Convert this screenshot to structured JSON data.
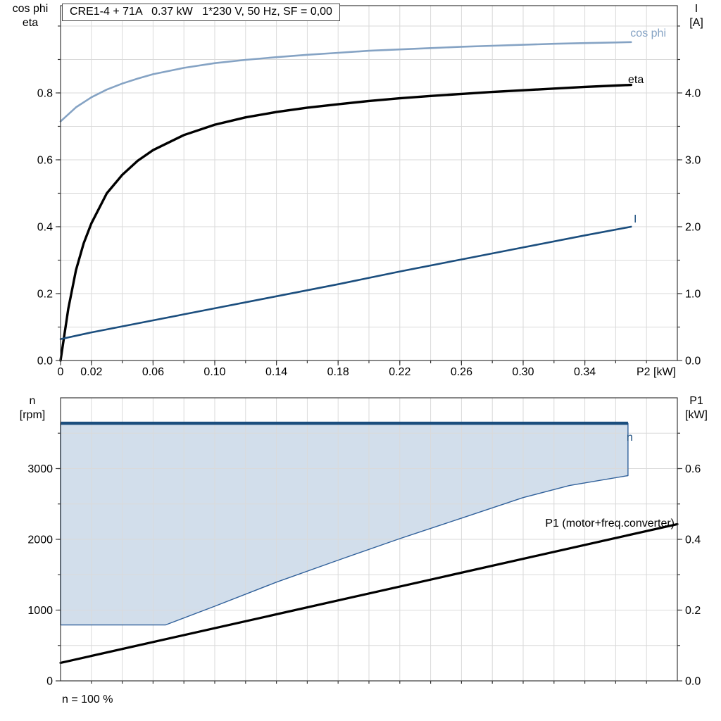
{
  "page": {
    "background": "#ffffff"
  },
  "chart_data": [
    {
      "id": "motor-performance",
      "type": "line",
      "title": "CRE1-4 + 71A   0.37 kW   1*230 V, 50 Hz, SF = 0,00",
      "xlabel": "P2 [kW]",
      "ylabel_left_lines": [
        "cos phi",
        "eta"
      ],
      "ylabel_right_lines": [
        "I",
        "[A]"
      ],
      "xlim": [
        0,
        0.4
      ],
      "ylim_left": [
        0,
        1.061
      ],
      "ylim_right": [
        0,
        5.305
      ],
      "x_grid_step": 0.02,
      "y_grid_step": 0.1,
      "grid": true,
      "legend_position": "on-curve",
      "x_ticks": [
        {
          "v": 0,
          "label": "0"
        },
        {
          "v": 0.02,
          "label": "0.02"
        },
        {
          "v": 0.06,
          "label": "0.06"
        },
        {
          "v": 0.1,
          "label": "0.10"
        },
        {
          "v": 0.14,
          "label": "0.14"
        },
        {
          "v": 0.18,
          "label": "0.18"
        },
        {
          "v": 0.22,
          "label": "0.22"
        },
        {
          "v": 0.26,
          "label": "0.26"
        },
        {
          "v": 0.3,
          "label": "0.30"
        },
        {
          "v": 0.34,
          "label": "0.34"
        }
      ],
      "y_ticks_left": [
        {
          "v": 0,
          "label": "0.0"
        },
        {
          "v": 0.2,
          "label": "0.2"
        },
        {
          "v": 0.4,
          "label": "0.4"
        },
        {
          "v": 0.6,
          "label": "0.6"
        },
        {
          "v": 0.8,
          "label": "0.8"
        }
      ],
      "y_ticks_right": [
        {
          "v": 0,
          "label": "0.0"
        },
        {
          "v": 1,
          "label": "1.0"
        },
        {
          "v": 2,
          "label": "2.0"
        },
        {
          "v": 3,
          "label": "3.0"
        },
        {
          "v": 4,
          "label": "4.0"
        }
      ],
      "series": [
        {
          "name": "cos phi",
          "color": "#85a3c4",
          "width": 2.6,
          "axis": "left",
          "points": [
            [
              0,
              0.715
            ],
            [
              0.01,
              0.757
            ],
            [
              0.02,
              0.787
            ],
            [
              0.03,
              0.81
            ],
            [
              0.04,
              0.828
            ],
            [
              0.05,
              0.843
            ],
            [
              0.06,
              0.856
            ],
            [
              0.08,
              0.875
            ],
            [
              0.1,
              0.889
            ],
            [
              0.12,
              0.899
            ],
            [
              0.14,
              0.907
            ],
            [
              0.16,
              0.914
            ],
            [
              0.18,
              0.92
            ],
            [
              0.2,
              0.926
            ],
            [
              0.22,
              0.93
            ],
            [
              0.24,
              0.934
            ],
            [
              0.26,
              0.938
            ],
            [
              0.28,
              0.941
            ],
            [
              0.3,
              0.944
            ],
            [
              0.32,
              0.947
            ],
            [
              0.34,
              0.949
            ],
            [
              0.36,
              0.951
            ],
            [
              0.37,
              0.952
            ]
          ]
        },
        {
          "name": "eta",
          "color": "#000000",
          "width": 3.4,
          "axis": "left",
          "points": [
            [
              0,
              0
            ],
            [
              0.005,
              0.155
            ],
            [
              0.01,
              0.27
            ],
            [
              0.015,
              0.35
            ],
            [
              0.02,
              0.41
            ],
            [
              0.03,
              0.5
            ],
            [
              0.04,
              0.555
            ],
            [
              0.05,
              0.597
            ],
            [
              0.06,
              0.629
            ],
            [
              0.08,
              0.674
            ],
            [
              0.1,
              0.705
            ],
            [
              0.12,
              0.727
            ],
            [
              0.14,
              0.743
            ],
            [
              0.16,
              0.756
            ],
            [
              0.18,
              0.766
            ],
            [
              0.2,
              0.776
            ],
            [
              0.22,
              0.784
            ],
            [
              0.24,
              0.791
            ],
            [
              0.26,
              0.797
            ],
            [
              0.28,
              0.803
            ],
            [
              0.3,
              0.808
            ],
            [
              0.32,
              0.813
            ],
            [
              0.34,
              0.818
            ],
            [
              0.36,
              0.822
            ],
            [
              0.37,
              0.824
            ]
          ]
        },
        {
          "name": "I",
          "color": "#1b4e7e",
          "width": 2.6,
          "axis": "right",
          "points": [
            [
              0,
              0.32
            ],
            [
              0.02,
              0.42
            ],
            [
              0.06,
              0.6
            ],
            [
              0.1,
              0.78
            ],
            [
              0.14,
              0.96
            ],
            [
              0.18,
              1.14
            ],
            [
              0.22,
              1.33
            ],
            [
              0.26,
              1.51
            ],
            [
              0.3,
              1.69
            ],
            [
              0.34,
              1.87
            ],
            [
              0.37,
              2.0
            ]
          ]
        }
      ]
    },
    {
      "id": "speed-range",
      "type": "area",
      "title": "",
      "xlabel": "",
      "ylabel_left_lines": [
        "n",
        "[rpm]"
      ],
      "ylabel_right_lines": [
        "P1",
        "[kW]"
      ],
      "footnote": "n = 100 %",
      "xlim": [
        0,
        0.4
      ],
      "ylim_left": [
        0,
        4000
      ],
      "ylim_right": [
        0,
        0.8
      ],
      "x_grid_step": 0.02,
      "y_grid_step": 500,
      "grid": true,
      "y_ticks_left": [
        {
          "v": 0,
          "label": "0"
        },
        {
          "v": 1000,
          "label": "1000"
        },
        {
          "v": 2000,
          "label": "2000"
        },
        {
          "v": 3000,
          "label": "3000"
        }
      ],
      "y_ticks_right": [
        {
          "v": 0,
          "label": "0.0"
        },
        {
          "v": 0.2,
          "label": "0.2"
        },
        {
          "v": 0.4,
          "label": "0.4"
        },
        {
          "v": 0.6,
          "label": "0.6"
        }
      ],
      "envelope": {
        "name": "n",
        "fill": "#d2deeb",
        "edge_color": "#31619b",
        "top_line_color": "#1b4e7e",
        "max_speed_rpm": 3640,
        "min_speed_rpm": 790,
        "polygon": [
          [
            0,
            3640
          ],
          [
            0.368,
            3640
          ],
          [
            0.368,
            2900
          ],
          [
            0.33,
            2760
          ],
          [
            0.3,
            2590
          ],
          [
            0.26,
            2300
          ],
          [
            0.22,
            2010
          ],
          [
            0.18,
            1705
          ],
          [
            0.14,
            1395
          ],
          [
            0.1,
            1055
          ],
          [
            0.068,
            790
          ],
          [
            0,
            790
          ]
        ]
      },
      "series": [
        {
          "name": "P1 (motor+freq.converter)",
          "color": "#000000",
          "width": 3.2,
          "axis": "right",
          "points": [
            [
              0,
              0.051
            ],
            [
              0.4,
              0.443
            ]
          ]
        }
      ]
    }
  ]
}
